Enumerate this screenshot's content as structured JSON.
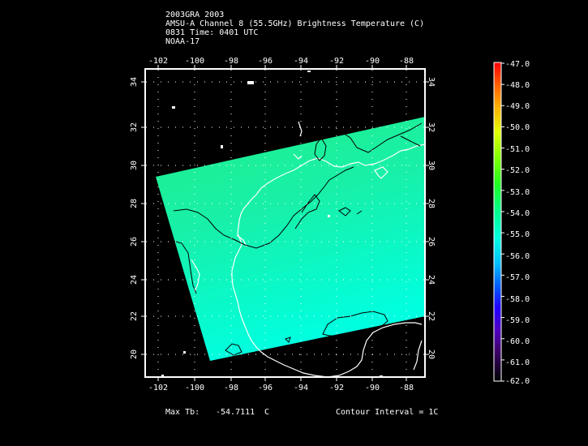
{
  "header": {
    "line1": "2003GRA 2003",
    "line2": "AMSU-A Channel 8 (55.5GHz) Brightness Temperature (C)",
    "line3": "0831 Time: 0401 UTC",
    "line4": "NOAA-17"
  },
  "map": {
    "lon_ticks": [
      "-102",
      "-100",
      "-98",
      "-96",
      "-94",
      "-92",
      "-90",
      "-88"
    ],
    "lat_ticks": [
      "20",
      "22",
      "24",
      "26",
      "28",
      "30",
      "32",
      "34"
    ],
    "lon_range": [
      -103,
      -87
    ],
    "lat_range": [
      19,
      35
    ]
  },
  "colorbar": {
    "labels": [
      "-47.0",
      "-48.0",
      "-49.0",
      "-50.0",
      "-51.0",
      "-52.0",
      "-53.0",
      "-54.0",
      "-55.0",
      "-56.0",
      "-57.0",
      "-58.0",
      "-59.0",
      "-60.0",
      "-61.0",
      "-62.0"
    ],
    "range": [
      -62,
      -47
    ],
    "colors": [
      "#ff0000",
      "#ff7a00",
      "#ffd000",
      "#c8ff00",
      "#5aff00",
      "#00ff40",
      "#00ffc0",
      "#00ffff",
      "#00a0ff",
      "#0040ff",
      "#3000ff",
      "#6000c0",
      "#400080",
      "#300040",
      "#000000"
    ]
  },
  "footer": {
    "max_label": "Max Tb:",
    "max_value": "-54.7111",
    "max_unit": "C",
    "contour_label": "Contour Interval = 1C"
  }
}
